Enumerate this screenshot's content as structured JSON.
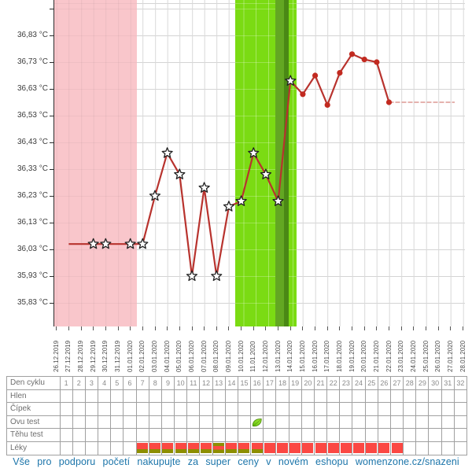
{
  "chart_data": {
    "type": "line",
    "x": [
      "26.12.2019",
      "27.12.2019",
      "28.12.2019",
      "29.12.2019",
      "30.12.2019",
      "31.12.2019",
      "01.01.2020",
      "02.01.2020",
      "03.01.2020",
      "04.01.2020",
      "05.01.2020",
      "06.01.2020",
      "07.01.2020",
      "08.01.2020",
      "09.01.2020",
      "10.01.2020",
      "11.01.2020",
      "12.01.2020",
      "13.01.2020",
      "14.01.2020",
      "15.01.2020",
      "16.01.2020",
      "17.01.2020",
      "18.01.2020",
      "19.01.2020",
      "20.01.2020",
      "21.01.2020",
      "22.01.2020",
      "23.01.2020",
      "24.01.2020",
      "25.01.2020",
      "26.01.2020",
      "27.01.2020",
      "28.01.2020"
    ],
    "values": [
      null,
      36.05,
      36.05,
      36.05,
      36.05,
      36.05,
      36.05,
      36.05,
      36.23,
      36.39,
      36.31,
      35.93,
      36.26,
      35.93,
      36.19,
      36.21,
      36.39,
      36.31,
      36.21,
      36.66,
      36.61,
      36.68,
      36.57,
      36.69,
      36.76,
      36.74,
      36.73,
      36.58,
      null,
      null,
      null,
      null,
      null,
      null
    ],
    "markers": [
      "none",
      "none",
      "none",
      "star",
      "star",
      "none",
      "star",
      "star",
      "star",
      "star",
      "star",
      "star",
      "star",
      "star",
      "star",
      "star",
      "star",
      "star",
      "star",
      "star",
      "dot",
      "dot",
      "dot",
      "dot",
      "dot",
      "dot",
      "dot",
      "dot",
      "none",
      "none",
      "none",
      "none",
      "none",
      "none"
    ],
    "flat_tail": {
      "value": 36.58,
      "from": "22.01.2020",
      "to": "28.01.2020"
    },
    "yticks": [
      "36,83 °C",
      "36,73 °C",
      "36,63 °C",
      "36,53 °C",
      "36,43 °C",
      "36,33 °C",
      "36,23 °C",
      "36,13 °C",
      "36,03 °C",
      "35,93 °C",
      "35,83 °C"
    ],
    "ytick_values": [
      36.83,
      36.73,
      36.63,
      36.53,
      36.43,
      36.33,
      36.23,
      36.13,
      36.03,
      35.93,
      35.83
    ],
    "ylim": [
      35.78,
      36.96
    ],
    "grid": true,
    "bands": {
      "menstruation": {
        "from": "26.12.2019",
        "to": "01.01.2020"
      },
      "fertile": {
        "from": "10.01.2020",
        "to": "14.01.2020"
      },
      "ovulation": {
        "date": "13.01.2020"
      }
    }
  },
  "table": {
    "row_labels": [
      "Den cyklu",
      "Hlen",
      "Čípek",
      "Ovu test",
      "Těhu test",
      "Léky"
    ],
    "cycle_days": [
      1,
      2,
      3,
      4,
      5,
      6,
      7,
      8,
      9,
      10,
      11,
      12,
      13,
      14,
      15,
      16,
      17,
      18,
      19,
      20,
      21,
      22,
      23,
      24,
      25,
      26,
      27,
      28,
      29,
      30,
      31,
      32
    ],
    "ovu_test": {
      "day": 16,
      "icon": "leaf-icon"
    },
    "leky": {
      "two_tone_days": [
        7,
        8,
        9,
        10,
        11,
        12,
        14,
        15,
        16
      ],
      "reversed_day": 13,
      "solid_days": [
        17,
        18,
        19,
        20,
        21,
        22,
        23,
        24,
        25,
        26,
        27
      ]
    }
  },
  "footer": {
    "text_before_link": "Vše pro podporu početí nakupujte za super ceny v novém eshopu",
    "link": "womenzone.cz/snazeni"
  },
  "colors": {
    "menstruation_band": "#f9c6cb",
    "fertile_band": "#7bdb13",
    "ovulation_band": "#63a722",
    "ovulation_band_dark": "#4a8815",
    "line": "#b8332e",
    "tail_line": "#d5837e",
    "dot": "#c22a20",
    "star_fill": "#ffffff",
    "star_stroke": "#222222",
    "grid_v": "#d8d8d8",
    "grid_h": "#d4d4d4",
    "axis": "#2b2b2b",
    "tick": "#555555",
    "y_label": "#3c3c3c",
    "x_label": "#4a4a4a",
    "leky_red": "#fb4843",
    "leky_olive": "#8e8e00",
    "leaf_light": "#a8ed3e",
    "leaf_dark": "#64c30c",
    "leaf_stroke": "#4e8c0a",
    "table_border": "#a0a0a0",
    "table_label_text": "#6e6e6e",
    "day_number_text": "#8b8b8b",
    "footer_text": "#1c75aa"
  }
}
